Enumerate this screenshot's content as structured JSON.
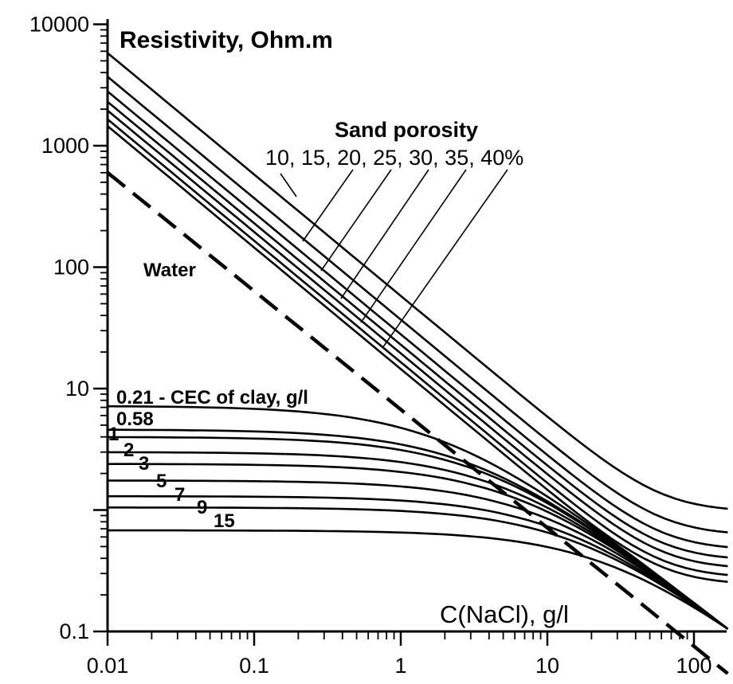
{
  "chart_data": {
    "type": "line",
    "title": "Resistivity, Ohm.m",
    "xlabel": "C(NaCl), g/l",
    "x_scale": "log",
    "y_scale": "log",
    "xlim": [
      0.01,
      170
    ],
    "ylim": [
      0.1,
      10000
    ],
    "x_ticks": [
      "0.01",
      "0.1",
      "1",
      "10",
      "100"
    ],
    "y_ticks": [
      "0.1",
      "10",
      "100",
      "1000",
      "10000"
    ],
    "grid": false,
    "annotations": {
      "sand_header": "Sand porosity",
      "sand_values": "10, 15, 20, 25, 30, 35, 40%",
      "water": "Water",
      "cec_first": "0.21 - CEC of clay, g/l",
      "cec_values": [
        "0.58",
        "1",
        "2",
        "3",
        "5",
        "7",
        "9",
        "15"
      ]
    },
    "water": {
      "name": "Water",
      "style": "dashed",
      "x": [
        0.01,
        170
      ],
      "y": [
        600,
        0.045
      ]
    },
    "sand_series": [
      {
        "porosity": "10",
        "y_start": 5800,
        "y_end": 0.85
      },
      {
        "porosity": "15",
        "y_start": 3700,
        "y_end": 0.6
      },
      {
        "porosity": "20",
        "y_start": 2800,
        "y_end": 0.43
      },
      {
        "porosity": "25",
        "y_start": 2300,
        "y_end": 0.33
      },
      {
        "porosity": "30",
        "y_start": 1950,
        "y_end": 0.25
      },
      {
        "porosity": "35",
        "y_start": 1650,
        "y_end": 0.2
      },
      {
        "porosity": "40",
        "y_start": 1450,
        "y_end": 0.16
      }
    ],
    "clay_series": [
      {
        "cec": "0.21",
        "plateau": 7.2
      },
      {
        "cec": "0.58",
        "plateau": 4.6
      },
      {
        "cec": "1",
        "plateau": 4.0
      },
      {
        "cec": "2",
        "plateau": 3.0
      },
      {
        "cec": "3",
        "plateau": 2.4
      },
      {
        "cec": "5",
        "plateau": 1.75
      },
      {
        "cec": "7",
        "plateau": 1.3
      },
      {
        "cec": "9",
        "plateau": 1.05
      },
      {
        "cec": "15",
        "plateau": 0.68
      }
    ],
    "clay_series_end_y": 0.105
  }
}
